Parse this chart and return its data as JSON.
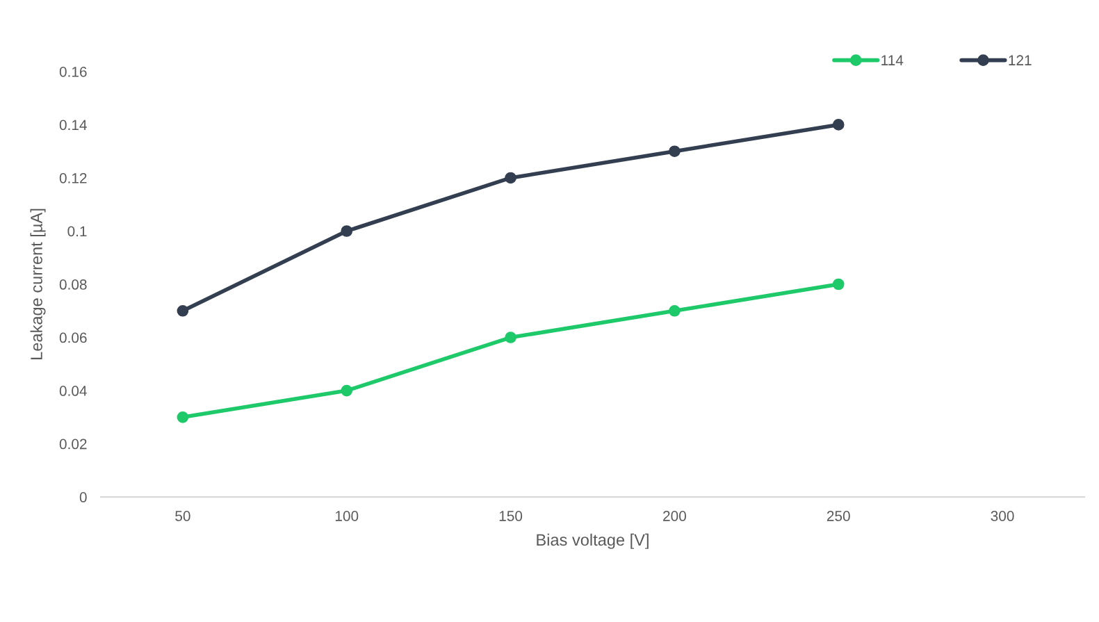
{
  "chart_data": {
    "type": "line",
    "xlabel": "Bias voltage [V]",
    "ylabel": "Leakage current [µA]",
    "categories": [
      "50",
      "100",
      "150",
      "200",
      "250",
      "300"
    ],
    "series": [
      {
        "name": "114",
        "color": "#1ec96a",
        "values": [
          0.03,
          0.04,
          0.06,
          0.07,
          0.08,
          null
        ]
      },
      {
        "name": "121",
        "color": "#333f50",
        "values": [
          0.07,
          0.1,
          0.12,
          0.13,
          0.14,
          null
        ]
      }
    ],
    "ylim": [
      0,
      0.16
    ],
    "yticks": [
      0,
      0.02,
      0.04,
      0.06,
      0.08,
      0.1,
      0.12,
      0.14,
      0.16
    ],
    "grid": false,
    "legend": "top right",
    "marker": "circle",
    "line_style": "solid"
  }
}
